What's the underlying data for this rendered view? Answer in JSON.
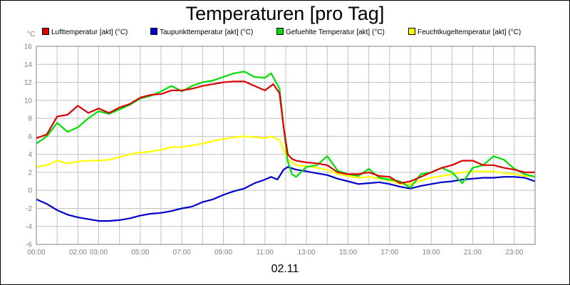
{
  "title": "Temperaturen [pro Tag]",
  "date_label": "02.11",
  "y_unit": "°C",
  "colors": {
    "luft": "#dd0000",
    "taupunkt": "#0000cc",
    "gefuehlt": "#00dd00",
    "feuchtkugel": "#ffff00",
    "grid": "#c0c0c0",
    "axis_text": "#808080"
  },
  "chart_data": {
    "type": "line",
    "title": "Temperaturen [pro Tag]",
    "xlabel": "02.11",
    "ylabel": "°C",
    "xlim": [
      0,
      24
    ],
    "ylim": [
      -6,
      16
    ],
    "y_ticks": [
      -6,
      -4,
      -2,
      0,
      2,
      4,
      6,
      8,
      10,
      12,
      14,
      16
    ],
    "x_tick_labels": [
      {
        "hour": 0,
        "label": "00:00"
      },
      {
        "hour": 2,
        "label": "02:00"
      },
      {
        "hour": 3,
        "label": "03:00"
      },
      {
        "hour": 5,
        "label": "05:00"
      },
      {
        "hour": 7,
        "label": "07:00"
      },
      {
        "hour": 9,
        "label": "09:00"
      },
      {
        "hour": 11,
        "label": "11:00"
      },
      {
        "hour": 13,
        "label": "13:00"
      },
      {
        "hour": 15,
        "label": "15:00"
      },
      {
        "hour": 17,
        "label": "17:00"
      },
      {
        "hour": 19,
        "label": "19:00"
      },
      {
        "hour": 21,
        "label": "21:00"
      },
      {
        "hour": 23,
        "label": "23:00"
      }
    ],
    "grid": true,
    "legend_position": "top",
    "series": [
      {
        "key": "luft",
        "name": "Lufttemperatur [akt] (°C)",
        "color": "#dd0000",
        "points": [
          [
            0,
            5.8
          ],
          [
            0.5,
            6.2
          ],
          [
            1,
            8.2
          ],
          [
            1.5,
            8.4
          ],
          [
            2,
            9.4
          ],
          [
            2.5,
            8.6
          ],
          [
            3,
            9.1
          ],
          [
            3.5,
            8.6
          ],
          [
            4,
            9.2
          ],
          [
            4.5,
            9.6
          ],
          [
            5,
            10.3
          ],
          [
            5.5,
            10.6
          ],
          [
            6,
            10.7
          ],
          [
            6.5,
            11.1
          ],
          [
            7,
            11.1
          ],
          [
            7.5,
            11.3
          ],
          [
            8,
            11.6
          ],
          [
            8.5,
            11.8
          ],
          [
            9,
            12.0
          ],
          [
            9.5,
            12.1
          ],
          [
            10,
            12.1
          ],
          [
            10.5,
            11.6
          ],
          [
            11,
            11.1
          ],
          [
            11.4,
            11.8
          ],
          [
            11.7,
            10.8
          ],
          [
            11.9,
            7.0
          ],
          [
            12.1,
            4.0
          ],
          [
            12.3,
            3.5
          ],
          [
            12.5,
            3.3
          ],
          [
            13,
            3.1
          ],
          [
            13.5,
            3.0
          ],
          [
            14,
            2.8
          ],
          [
            14.5,
            2.0
          ],
          [
            15,
            1.8
          ],
          [
            15.5,
            1.8
          ],
          [
            16,
            2.0
          ],
          [
            16.5,
            1.6
          ],
          [
            17,
            1.5
          ],
          [
            17.5,
            0.8
          ],
          [
            18,
            1.0
          ],
          [
            18.5,
            1.5
          ],
          [
            19,
            2.0
          ],
          [
            19.5,
            2.5
          ],
          [
            20,
            2.8
          ],
          [
            20.5,
            3.3
          ],
          [
            21,
            3.3
          ],
          [
            21.5,
            2.8
          ],
          [
            22,
            2.8
          ],
          [
            22.5,
            2.5
          ],
          [
            23,
            2.3
          ],
          [
            23.5,
            2.0
          ],
          [
            24,
            2.0
          ]
        ]
      },
      {
        "key": "taupunkt",
        "name": "Taupunkttemperatur [akt] (°C)",
        "color": "#0000cc",
        "points": [
          [
            0,
            -1.0
          ],
          [
            0.5,
            -1.5
          ],
          [
            1,
            -2.2
          ],
          [
            1.5,
            -2.7
          ],
          [
            2,
            -3.0
          ],
          [
            2.5,
            -3.2
          ],
          [
            3,
            -3.4
          ],
          [
            3.5,
            -3.4
          ],
          [
            4,
            -3.3
          ],
          [
            4.5,
            -3.1
          ],
          [
            5,
            -2.8
          ],
          [
            5.5,
            -2.6
          ],
          [
            6,
            -2.5
          ],
          [
            6.5,
            -2.3
          ],
          [
            7,
            -2.0
          ],
          [
            7.5,
            -1.8
          ],
          [
            8,
            -1.3
          ],
          [
            8.5,
            -1.0
          ],
          [
            9,
            -0.5
          ],
          [
            9.5,
            -0.1
          ],
          [
            10,
            0.2
          ],
          [
            10.5,
            0.8
          ],
          [
            11,
            1.2
          ],
          [
            11.3,
            1.5
          ],
          [
            11.6,
            1.2
          ],
          [
            11.9,
            2.3
          ],
          [
            12.1,
            2.6
          ],
          [
            12.5,
            2.3
          ],
          [
            13,
            2.1
          ],
          [
            13.5,
            1.9
          ],
          [
            14,
            1.7
          ],
          [
            14.5,
            1.3
          ],
          [
            15,
            1.0
          ],
          [
            15.5,
            0.7
          ],
          [
            16,
            0.8
          ],
          [
            16.5,
            0.9
          ],
          [
            17,
            0.7
          ],
          [
            17.5,
            0.4
          ],
          [
            18,
            0.2
          ],
          [
            18.5,
            0.5
          ],
          [
            19,
            0.7
          ],
          [
            19.5,
            0.9
          ],
          [
            20,
            1.0
          ],
          [
            20.5,
            1.2
          ],
          [
            21,
            1.3
          ],
          [
            21.5,
            1.4
          ],
          [
            22,
            1.4
          ],
          [
            22.5,
            1.5
          ],
          [
            23,
            1.5
          ],
          [
            23.5,
            1.4
          ],
          [
            24,
            1.0
          ]
        ]
      },
      {
        "key": "gefuehlt",
        "name": "Gefuehlte Temperatur [akt] (°C)",
        "color": "#00dd00",
        "points": [
          [
            0,
            5.2
          ],
          [
            0.5,
            6.0
          ],
          [
            1,
            7.5
          ],
          [
            1.5,
            6.5
          ],
          [
            2,
            7.0
          ],
          [
            2.5,
            8.0
          ],
          [
            3,
            8.8
          ],
          [
            3.5,
            8.5
          ],
          [
            4,
            9.0
          ],
          [
            4.5,
            9.5
          ],
          [
            5,
            10.2
          ],
          [
            5.5,
            10.5
          ],
          [
            6,
            11.0
          ],
          [
            6.5,
            11.6
          ],
          [
            7,
            11.0
          ],
          [
            7.5,
            11.6
          ],
          [
            8,
            12.0
          ],
          [
            8.5,
            12.2
          ],
          [
            9,
            12.6
          ],
          [
            9.5,
            13.0
          ],
          [
            10,
            13.2
          ],
          [
            10.5,
            12.6
          ],
          [
            11,
            12.5
          ],
          [
            11.3,
            13.0
          ],
          [
            11.7,
            11.3
          ],
          [
            11.9,
            7.0
          ],
          [
            12.1,
            3.2
          ],
          [
            12.3,
            1.8
          ],
          [
            12.5,
            1.5
          ],
          [
            13,
            2.6
          ],
          [
            13.5,
            2.8
          ],
          [
            14,
            3.8
          ],
          [
            14.5,
            2.2
          ],
          [
            15,
            1.8
          ],
          [
            15.5,
            1.6
          ],
          [
            16,
            2.4
          ],
          [
            16.5,
            1.4
          ],
          [
            17,
            1.2
          ],
          [
            17.5,
            1.0
          ],
          [
            18,
            0.3
          ],
          [
            18.5,
            1.8
          ],
          [
            19,
            2.0
          ],
          [
            19.5,
            2.5
          ],
          [
            20,
            2.0
          ],
          [
            20.5,
            0.8
          ],
          [
            21,
            2.5
          ],
          [
            21.5,
            2.8
          ],
          [
            22,
            3.8
          ],
          [
            22.5,
            3.4
          ],
          [
            23,
            2.4
          ],
          [
            23.5,
            1.8
          ],
          [
            24,
            1.5
          ]
        ]
      },
      {
        "key": "feuchtkugel",
        "name": "Feuchtkugeltemperatur [akt] (°C)",
        "color": "#ffff00",
        "points": [
          [
            0,
            2.6
          ],
          [
            0.5,
            2.8
          ],
          [
            1,
            3.3
          ],
          [
            1.5,
            3.0
          ],
          [
            2,
            3.2
          ],
          [
            2.5,
            3.3
          ],
          [
            3,
            3.3
          ],
          [
            3.5,
            3.4
          ],
          [
            4,
            3.7
          ],
          [
            4.5,
            4.0
          ],
          [
            5,
            4.2
          ],
          [
            5.5,
            4.3
          ],
          [
            6,
            4.5
          ],
          [
            6.5,
            4.8
          ],
          [
            7,
            4.8
          ],
          [
            7.5,
            5.0
          ],
          [
            8,
            5.2
          ],
          [
            8.5,
            5.5
          ],
          [
            9,
            5.7
          ],
          [
            9.5,
            5.9
          ],
          [
            10,
            6.0
          ],
          [
            10.5,
            5.9
          ],
          [
            11,
            5.8
          ],
          [
            11.3,
            6.0
          ],
          [
            11.7,
            5.6
          ],
          [
            11.9,
            4.5
          ],
          [
            12.1,
            3.4
          ],
          [
            12.5,
            2.8
          ],
          [
            13,
            2.7
          ],
          [
            13.5,
            2.5
          ],
          [
            14,
            2.3
          ],
          [
            14.5,
            1.8
          ],
          [
            15,
            1.6
          ],
          [
            15.5,
            1.4
          ],
          [
            16,
            1.5
          ],
          [
            16.5,
            1.3
          ],
          [
            17,
            1.1
          ],
          [
            17.5,
            0.7
          ],
          [
            18,
            0.7
          ],
          [
            18.5,
            1.1
          ],
          [
            19,
            1.4
          ],
          [
            19.5,
            1.6
          ],
          [
            20,
            1.8
          ],
          [
            20.5,
            2.0
          ],
          [
            21,
            2.1
          ],
          [
            21.5,
            2.1
          ],
          [
            22,
            2.1
          ],
          [
            22.5,
            1.9
          ],
          [
            23,
            1.8
          ],
          [
            23.5,
            1.6
          ],
          [
            24,
            1.6
          ]
        ]
      }
    ]
  }
}
